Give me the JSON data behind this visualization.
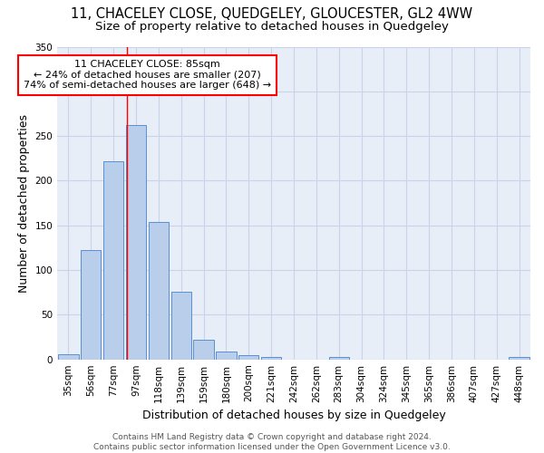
{
  "title": "11, CHACELEY CLOSE, QUEDGELEY, GLOUCESTER, GL2 4WW",
  "subtitle": "Size of property relative to detached houses in Quedgeley",
  "xlabel": "Distribution of detached houses by size in Quedgeley",
  "ylabel": "Number of detached properties",
  "bar_labels": [
    "35sqm",
    "56sqm",
    "77sqm",
    "97sqm",
    "118sqm",
    "139sqm",
    "159sqm",
    "180sqm",
    "200sqm",
    "221sqm",
    "242sqm",
    "262sqm",
    "283sqm",
    "304sqm",
    "324sqm",
    "345sqm",
    "365sqm",
    "386sqm",
    "407sqm",
    "427sqm",
    "448sqm"
  ],
  "bar_heights": [
    6,
    122,
    222,
    262,
    154,
    76,
    22,
    9,
    5,
    3,
    0,
    0,
    3,
    0,
    0,
    0,
    0,
    0,
    0,
    0,
    3
  ],
  "bar_color": "#b8ceea",
  "bar_edge_color": "#5b8fd4",
  "grid_color": "#c8d4e8",
  "bg_color": "#e8eef8",
  "red_line_x": 2.58,
  "annotation_text": "11 CHACELEY CLOSE: 85sqm\n← 24% of detached houses are smaller (207)\n74% of semi-detached houses are larger (648) →",
  "annotation_box_color": "white",
  "annotation_box_edge": "red",
  "ylim": [
    0,
    350
  ],
  "yticks": [
    0,
    50,
    100,
    150,
    200,
    250,
    300,
    350
  ],
  "footer_text": "Contains HM Land Registry data © Crown copyright and database right 2024.\nContains public sector information licensed under the Open Government Licence v3.0.",
  "title_fontsize": 10.5,
  "subtitle_fontsize": 9.5,
  "axis_label_fontsize": 9,
  "tick_fontsize": 7.5,
  "annotation_fontsize": 8,
  "footer_fontsize": 6.5
}
